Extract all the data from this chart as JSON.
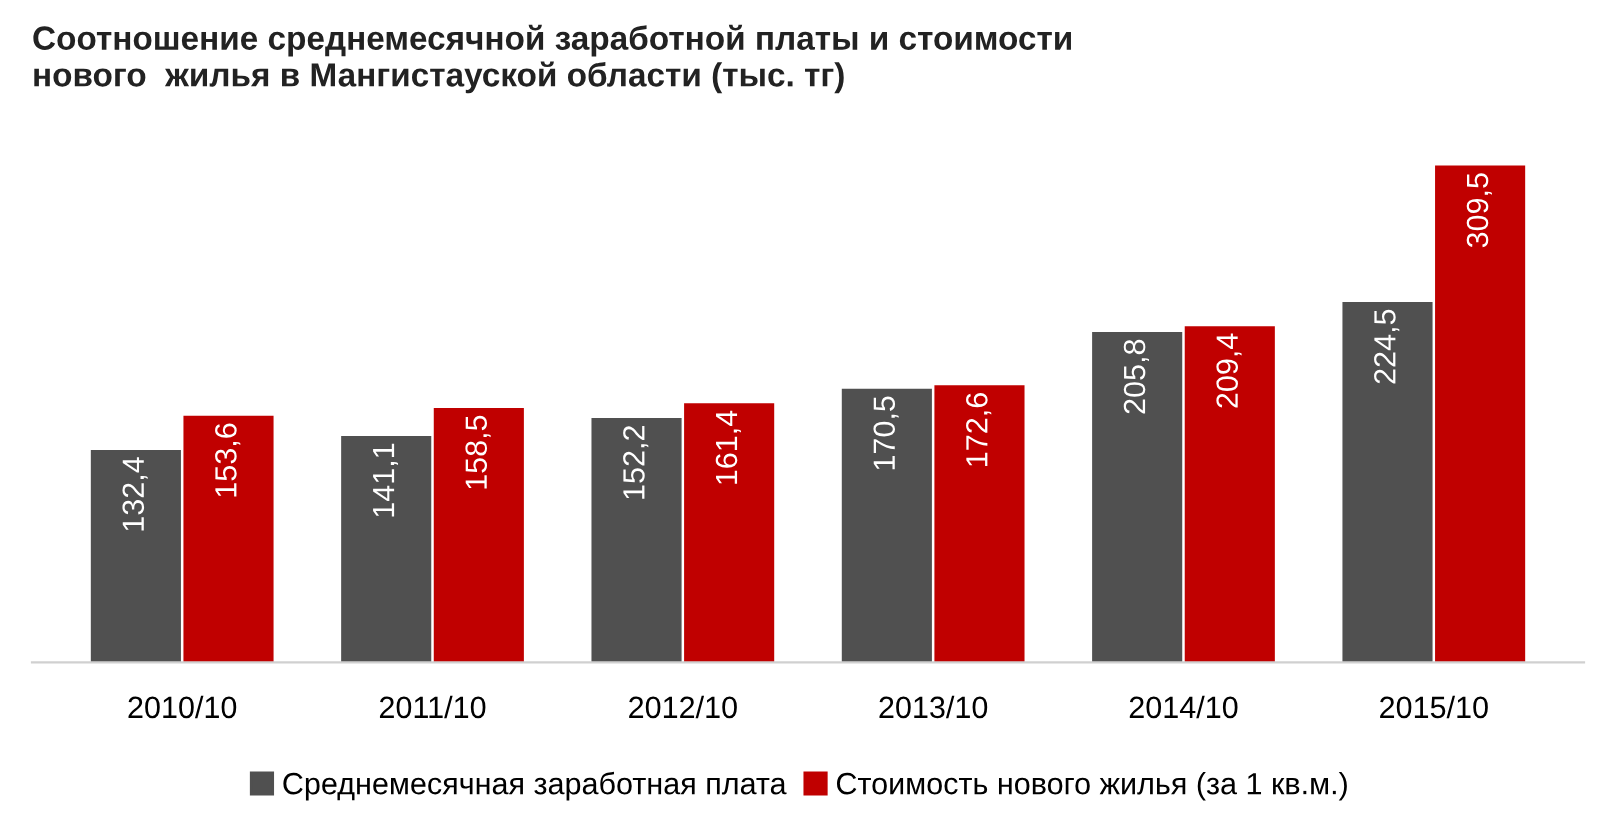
{
  "chart_data": {
    "type": "bar",
    "title": "Соотношение среднемесячной заработной платы и стоимости\nнового  жилья в Мангистауской области (тыс. тг)",
    "categories": [
      "2010/10",
      "2011/10",
      "2012/10",
      "2013/10",
      "2014/10",
      "2015/10"
    ],
    "series": [
      {
        "name": "Среднемесячная заработная плата",
        "color": "#505050",
        "values": [
          132.4,
          141.1,
          152.2,
          170.5,
          205.8,
          224.5
        ],
        "value_labels": [
          "132,4",
          "141,1",
          "152,2",
          "170,5",
          "205,8",
          "224,5"
        ]
      },
      {
        "name": "Стоимость нового жилья (за 1 кв.м.)",
        "color": "#c00000",
        "values": [
          153.6,
          158.5,
          161.4,
          172.6,
          209.4,
          309.5
        ],
        "value_labels": [
          "153,6",
          "158,5",
          "161,4",
          "172,6",
          "209,4",
          "309,5"
        ]
      }
    ],
    "legend": "bottom",
    "grid": false
  }
}
